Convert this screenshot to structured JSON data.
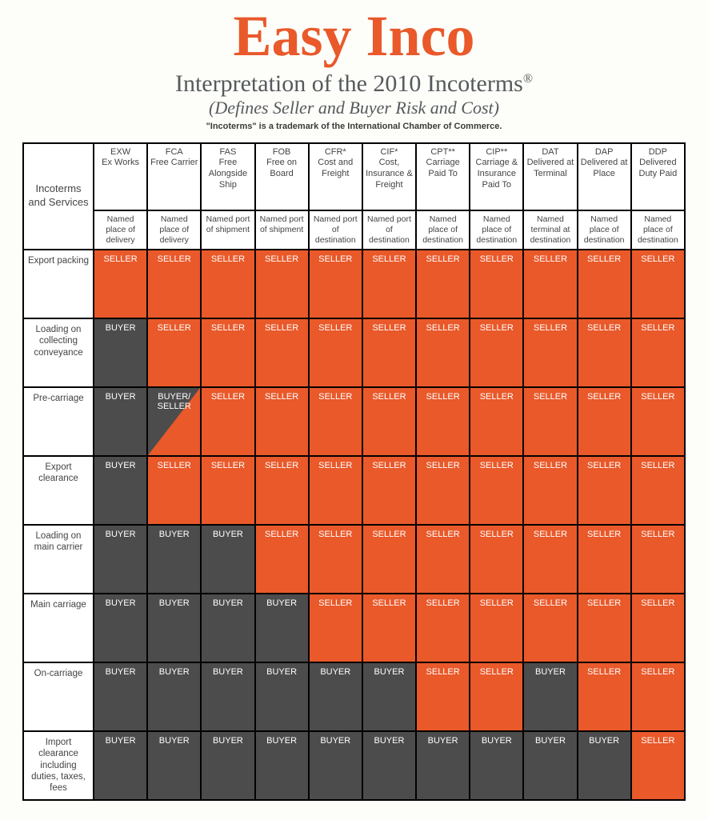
{
  "header": {
    "title": "Easy Inco",
    "subtitle_pre": "Interpretation of the 2010 Incoterms",
    "subtitle_sup": "®",
    "tagline": "(Defines Seller and Buyer Risk and Cost)",
    "footnote": "\"Incoterms\" is a trademark of the International Chamber of Commerce."
  },
  "corner_label": "Incoterms and Services",
  "colors": {
    "seller_bg": "#e9592a",
    "buyer_bg": "#4c4c4c",
    "page_bg": "#fdfdf9",
    "title_color": "#e9592a",
    "text_gray": "#555a5c"
  },
  "columns": [
    {
      "code": "EXW",
      "name": "Ex Works",
      "place": "Named place of delivery"
    },
    {
      "code": "FCA",
      "name": "Free Carrier",
      "place": "Named place of delivery"
    },
    {
      "code": "FAS",
      "name": "Free Alongside Ship",
      "place": "Named port of shipment"
    },
    {
      "code": "FOB",
      "name": "Free on Board",
      "place": "Named port of shipment"
    },
    {
      "code": "CFR*",
      "name": "Cost and Freight",
      "place": "Named port of destination"
    },
    {
      "code": "CIF*",
      "name": "Cost, Insurance & Freight",
      "place": "Named port of destination"
    },
    {
      "code": "CPT**",
      "name": "Carriage Paid To",
      "place": "Named place of destination"
    },
    {
      "code": "CIP**",
      "name": "Carriage & Insurance Paid To",
      "place": "Named place of destination"
    },
    {
      "code": "DAT",
      "name": "Delivered at Terminal",
      "place": "Named terminal at destination"
    },
    {
      "code": "DAP",
      "name": "Delivered at Place",
      "place": "Named place of destination"
    },
    {
      "code": "DDP",
      "name": "Delivered Duty Paid",
      "place": "Named place of destination"
    }
  ],
  "rows": [
    {
      "label": "Export packing",
      "cells": [
        "SELLER",
        "SELLER",
        "SELLER",
        "SELLER",
        "SELLER",
        "SELLER",
        "SELLER",
        "SELLER",
        "SELLER",
        "SELLER",
        "SELLER"
      ]
    },
    {
      "label": "Loading on collecting conveyance",
      "cells": [
        "BUYER",
        "SELLER",
        "SELLER",
        "SELLER",
        "SELLER",
        "SELLER",
        "SELLER",
        "SELLER",
        "SELLER",
        "SELLER",
        "SELLER"
      ]
    },
    {
      "label": "Pre-carriage",
      "cells": [
        "BUYER",
        "BUYER/SELLER",
        "SELLER",
        "SELLER",
        "SELLER",
        "SELLER",
        "SELLER",
        "SELLER",
        "SELLER",
        "SELLER",
        "SELLER"
      ]
    },
    {
      "label": "Export clearance",
      "cells": [
        "BUYER",
        "SELLER",
        "SELLER",
        "SELLER",
        "SELLER",
        "SELLER",
        "SELLER",
        "SELLER",
        "SELLER",
        "SELLER",
        "SELLER"
      ]
    },
    {
      "label": "Loading on main carrier",
      "cells": [
        "BUYER",
        "BUYER",
        "BUYER",
        "SELLER",
        "SELLER",
        "SELLER",
        "SELLER",
        "SELLER",
        "SELLER",
        "SELLER",
        "SELLER"
      ]
    },
    {
      "label": "Main carriage",
      "cells": [
        "BUYER",
        "BUYER",
        "BUYER",
        "BUYER",
        "SELLER",
        "SELLER",
        "SELLER",
        "SELLER",
        "SELLER",
        "SELLER",
        "SELLER"
      ]
    },
    {
      "label": "On-carriage",
      "cells": [
        "BUYER",
        "BUYER",
        "BUYER",
        "BUYER",
        "BUYER",
        "BUYER",
        "SELLER",
        "SELLER",
        "BUYER",
        "SELLER",
        "SELLER"
      ]
    },
    {
      "label": "Import clearance including duties, taxes, fees",
      "cells": [
        "BUYER",
        "BUYER",
        "BUYER",
        "BUYER",
        "BUYER",
        "BUYER",
        "BUYER",
        "BUYER",
        "BUYER",
        "BUYER",
        "SELLER"
      ]
    }
  ]
}
